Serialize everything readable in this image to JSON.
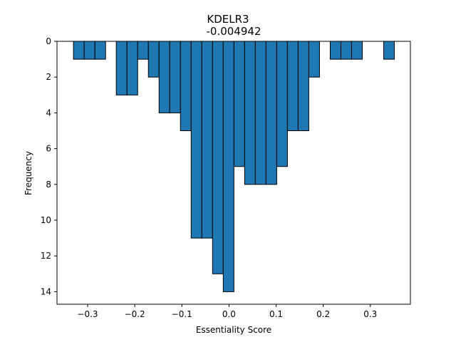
{
  "chart_data": {
    "type": "bar",
    "title": "KDELR3",
    "subtitle": "-0.004942",
    "xlabel": "Essentiality Score",
    "ylabel": "Frequency",
    "xlim": [
      -0.365,
      0.385
    ],
    "ylim": [
      0,
      14.7
    ],
    "y_inverted": true,
    "bar_color": "#1f77b4",
    "edge_color": "#000000",
    "bin_width": 0.0227,
    "x_ticks": [
      -0.3,
      -0.2,
      -0.1,
      0.0,
      0.1,
      0.2,
      0.3
    ],
    "x_tick_labels": [
      "−0.3",
      "−0.2",
      "−0.1",
      "0.0",
      "0.1",
      "0.2",
      "0.3"
    ],
    "y_ticks": [
      0,
      2,
      4,
      6,
      8,
      10,
      12,
      14
    ],
    "y_tick_labels": [
      "0",
      "2",
      "4",
      "6",
      "8",
      "10",
      "12",
      "14"
    ],
    "bin_start": [
      -0.33,
      -0.3073,
      -0.2846,
      -0.2619,
      -0.2392,
      -0.2165,
      -0.1938,
      -0.1711,
      -0.1484,
      -0.1257,
      -0.103,
      -0.0803,
      -0.0576,
      -0.0349,
      -0.0122,
      0.0105,
      0.0332,
      0.0559,
      0.0786,
      0.1013,
      0.124,
      0.1467,
      0.1694,
      0.1921,
      0.2148,
      0.2375,
      0.2602,
      0.2829,
      0.3056,
      0.3283
    ],
    "values": [
      1,
      1,
      1,
      0,
      3,
      3,
      1,
      2,
      4,
      4,
      5,
      11,
      11,
      13,
      14,
      7,
      8,
      8,
      8,
      7,
      5,
      5,
      2,
      0,
      1,
      1,
      1,
      0,
      0,
      1
    ],
    "grid": false,
    "legend": "none"
  }
}
